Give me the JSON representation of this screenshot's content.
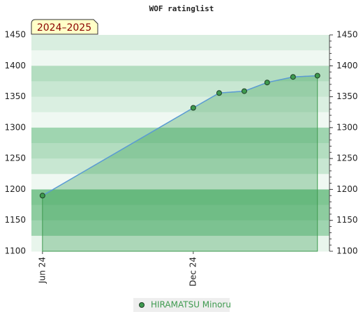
{
  "chart_data": {
    "type": "line",
    "title": "WOF ratinglist",
    "badge": "2024–2025",
    "x": [
      0,
      6,
      7.03,
      8.03,
      8.94,
      9.97,
      10.94
    ],
    "xlim": [
      -0.44,
      11.42
    ],
    "xticks": [
      {
        "value": 0,
        "label": "Jun 24"
      },
      {
        "value": 6,
        "label": "Dec 24"
      }
    ],
    "series": [
      {
        "name": "HIRAMATSU Minoru",
        "color": "#3e9a4f",
        "line_color": "#5b9bd5",
        "values": [
          1190,
          1332,
          1356,
          1359,
          1373,
          1382,
          1384
        ]
      }
    ],
    "ylim": [
      1100,
      1450
    ],
    "yticks": [
      1100,
      1150,
      1200,
      1250,
      1300,
      1350,
      1400,
      1450
    ]
  }
}
